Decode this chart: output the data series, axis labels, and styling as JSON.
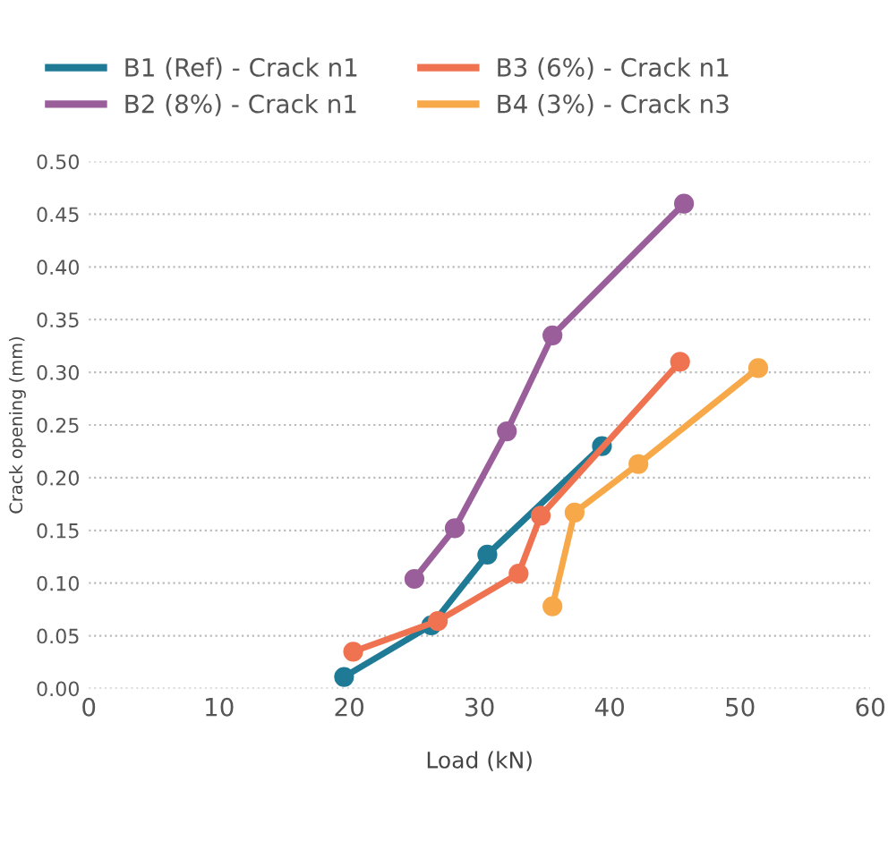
{
  "chart_data": {
    "type": "line",
    "xlabel": "Load (kN)",
    "ylabel": "Crack opening (mm)",
    "xlim": [
      0,
      60
    ],
    "xticks": [
      0,
      10,
      20,
      30,
      40,
      50,
      60
    ],
    "ylim": [
      0,
      0.5
    ],
    "yticks": [
      {
        "value": 0,
        "label": "0.00"
      },
      {
        "value": 0.05,
        "label": "0.05"
      },
      {
        "value": 0.1,
        "label": "0.10"
      },
      {
        "value": 0.15,
        "label": "0.15"
      },
      {
        "value": 0.2,
        "label": "0.20"
      },
      {
        "value": 0.25,
        "label": "0.25"
      },
      {
        "value": 0.3,
        "label": "0.30"
      },
      {
        "value": 0.35,
        "label": "0.35"
      },
      {
        "value": 0.4,
        "label": "0.40"
      },
      {
        "value": 0.45,
        "label": "0.45"
      },
      {
        "value": 0.5,
        "label": "0.50"
      }
    ],
    "grid": "y",
    "legend": "top",
    "marker": "circle",
    "line_style": "solid",
    "series": [
      {
        "name": "B1 (Ref) - Crack n1",
        "color": "#1f7a96",
        "x": [
          19.6,
          26.3,
          30.6,
          39.4
        ],
        "values": [
          0.011,
          0.06,
          0.127,
          0.23
        ]
      },
      {
        "name": "B2 (8%) - Crack n1",
        "color": "#9a5f9a",
        "x": [
          25.0,
          28.1,
          32.1,
          35.6,
          45.7
        ],
        "values": [
          0.104,
          0.152,
          0.244,
          0.335,
          0.46
        ]
      },
      {
        "name": "B3 (6%) - Crack n1",
        "color": "#ef7351",
        "x": [
          20.3,
          26.8,
          33.0,
          34.7,
          45.4
        ],
        "values": [
          0.035,
          0.064,
          0.109,
          0.164,
          0.31
        ]
      },
      {
        "name": "B4 (3%) - Crack n3",
        "color": "#f7a94a",
        "x": [
          35.6,
          37.3,
          42.2,
          51.4
        ],
        "values": [
          0.078,
          0.167,
          0.213,
          0.304
        ]
      }
    ]
  }
}
